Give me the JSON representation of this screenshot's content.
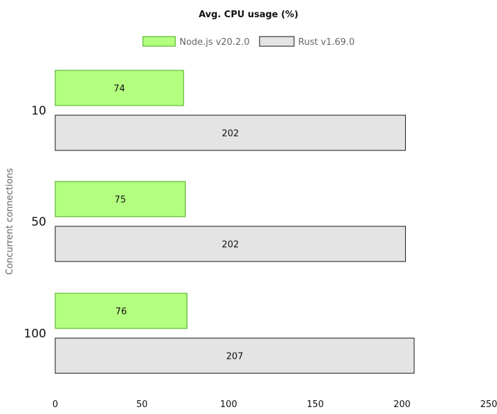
{
  "chart_data": {
    "type": "bar",
    "orientation": "horizontal",
    "title": "Avg. CPU usage (%)",
    "xlabel": "",
    "ylabel": "Concurrent connections",
    "categories": [
      "10",
      "50",
      "100"
    ],
    "series": [
      {
        "name": "Node.js v20.2.0",
        "values": [
          74,
          75,
          76
        ],
        "color": "#b3ff80",
        "stroke": "#44a814"
      },
      {
        "name": "Rust v1.69.0",
        "values": [
          202,
          202,
          207
        ],
        "color": "#e4e4e4",
        "stroke": "#111111"
      }
    ],
    "xlim": [
      0,
      250
    ],
    "xticks": [
      0,
      50,
      100,
      150,
      200,
      250
    ],
    "legend_position": "top-center",
    "grid": false
  }
}
